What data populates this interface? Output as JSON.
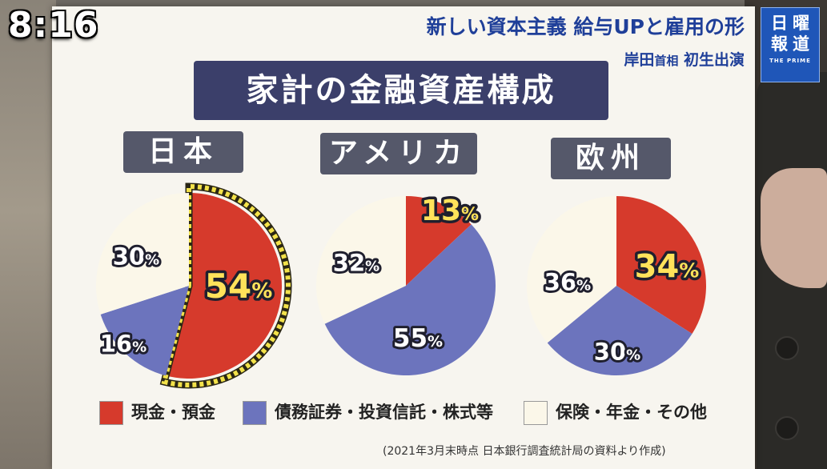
{
  "broadcast": {
    "clock": "8:16",
    "headline": "新しい資本主義 給与UPと雇用の形",
    "subline_name": "岸田",
    "subline_title": "首相",
    "subline_event": "初生出演",
    "logo_line1": "日曜",
    "logo_line2": "報道",
    "logo_sub": "THE PRIME"
  },
  "board": {
    "title": "家計の金融資産構成",
    "source": "(2021年3月末時点 日本銀行調査統計局の資料より作成)"
  },
  "legend": [
    {
      "label": "現金・預金",
      "color": "#d63a2c"
    },
    {
      "label": "債務証券・投資信託・株式等",
      "color": "#6c74bd"
    },
    {
      "label": "保険・年金・その他",
      "color": "#fbf7e9"
    }
  ],
  "colors": {
    "cash": "#d63a2c",
    "securities": "#6c74bd",
    "insurance": "#fbf7e9",
    "highlight_text": "#ffe25a",
    "dotted_border": "#f3e24a",
    "board": "#f7f5ef",
    "title_box": "#3b3f6a",
    "region_box": "#55586a",
    "brand_blue": "#1f56b8"
  },
  "chart_data": [
    {
      "type": "pie",
      "title": "日本",
      "categories": [
        "現金・預金",
        "債務証券・投資信託・株式等",
        "保険・年金・その他"
      ],
      "values": [
        54,
        16,
        30
      ],
      "labels": [
        "54%",
        "16%",
        "30%"
      ],
      "highlight": "現金・預金"
    },
    {
      "type": "pie",
      "title": "アメリカ",
      "categories": [
        "現金・預金",
        "債務証券・投資信託・株式等",
        "保険・年金・その他"
      ],
      "values": [
        13,
        55,
        32
      ],
      "labels": [
        "13%",
        "55%",
        "32%"
      ]
    },
    {
      "type": "pie",
      "title": "欧州",
      "categories": [
        "現金・預金",
        "債務証券・投資信託・株式等",
        "保険・年金・その他"
      ],
      "values": [
        34,
        30,
        36
      ],
      "labels": [
        "34%",
        "30%",
        "36%"
      ]
    }
  ]
}
